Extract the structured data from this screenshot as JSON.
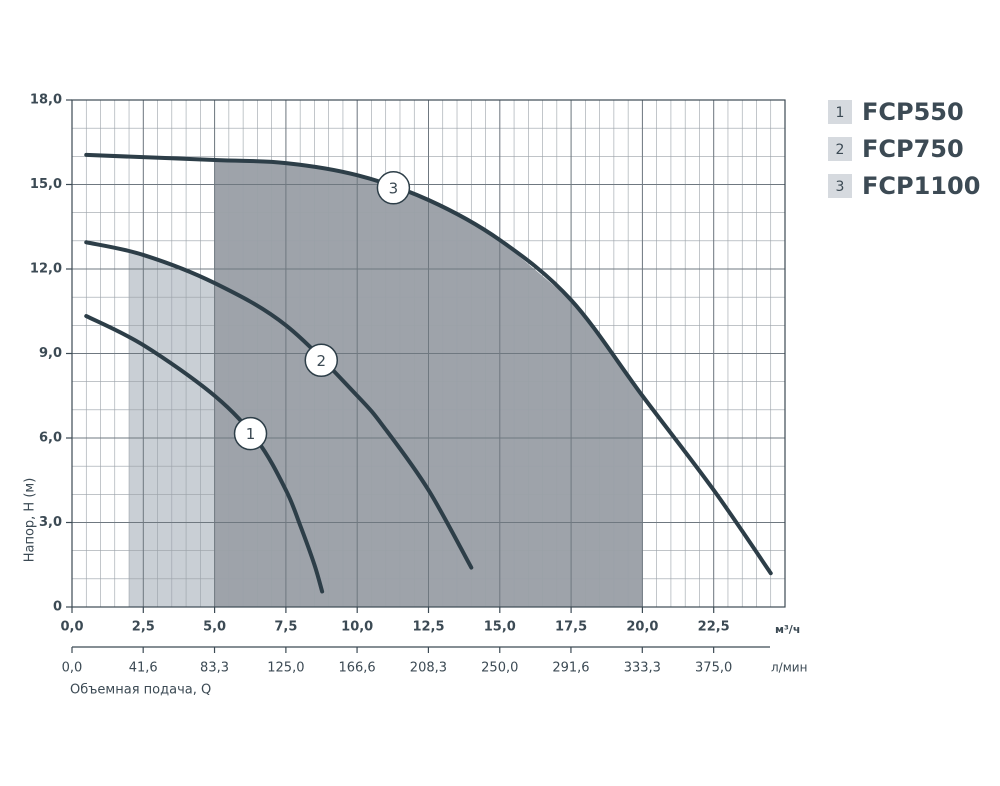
{
  "chart_data": {
    "type": "line",
    "y_label": "Напор, Н (м)",
    "x_label": "Объемная подача, Q",
    "x_unit": "м³/ч",
    "x2_unit": "л/мин",
    "xlim": [
      0,
      25
    ],
    "xticks": [
      {
        "value": 0,
        "label": "0,0"
      },
      {
        "value": 2.5,
        "label": "2,5"
      },
      {
        "value": 5,
        "label": "5,0"
      },
      {
        "value": 7.5,
        "label": "7,5"
      },
      {
        "value": 10,
        "label": "10,0"
      },
      {
        "value": 12.5,
        "label": "12,5"
      },
      {
        "value": 15,
        "label": "15,0"
      },
      {
        "value": 17.5,
        "label": "17,5"
      },
      {
        "value": 20,
        "label": "20,0"
      },
      {
        "value": 22.5,
        "label": "22,5"
      }
    ],
    "x2lim": [
      0,
      416.7
    ],
    "x2ticks": [
      {
        "value": 0,
        "label": "0,0"
      },
      {
        "value": 41.6,
        "label": "41,6"
      },
      {
        "value": 83.3,
        "label": "83,3"
      },
      {
        "value": 125,
        "label": "125,0"
      },
      {
        "value": 166.6,
        "label": "166,6"
      },
      {
        "value": 208.3,
        "label": "208,3"
      },
      {
        "value": 250,
        "label": "250,0"
      },
      {
        "value": 291.6,
        "label": "291,6"
      },
      {
        "value": 333.3,
        "label": "333,3"
      },
      {
        "value": 375,
        "label": "375,0"
      }
    ],
    "ylim": [
      0,
      18
    ],
    "yticks": [
      0,
      {
        "value": 3,
        "label": "3,0"
      },
      {
        "value": 6,
        "label": "6,0"
      },
      {
        "value": 9,
        "label": "9,0"
      },
      {
        "value": 12,
        "label": "12,0"
      },
      {
        "value": 15,
        "label": "15,0"
      },
      {
        "value": 18,
        "label": "18,0"
      }
    ],
    "grid": true,
    "x_minor_divisions": 5,
    "y_minor_divisions": 3,
    "legend": "top-right",
    "series": [
      {
        "name": "FCP550",
        "label": "1",
        "color": "#2d3e48",
        "label_x": 6.26,
        "x": [
          0.5,
          2.5,
          5,
          6.5,
          7.5,
          8,
          8.5,
          8.77
        ],
        "values": [
          10.33,
          9.3,
          7.5,
          5.9,
          4.15,
          2.9,
          1.5,
          0.55
        ]
      },
      {
        "name": "FCP750",
        "label": "2",
        "color": "#2d3e48",
        "label_x": 8.74,
        "range": [
          2,
          11
        ],
        "range_color": "#c9cfd5",
        "x": [
          0.5,
          2.5,
          5,
          7.5,
          10,
          11,
          12.5,
          14
        ],
        "values": [
          12.95,
          12.5,
          11.5,
          10.0,
          7.5,
          6.3,
          4.15,
          1.4
        ]
      },
      {
        "name": "FCP1100",
        "label": "3",
        "color": "#2d3e48",
        "label_x": 11.27,
        "range": [
          5,
          20
        ],
        "range_color": "#9ea3aa",
        "x": [
          0.5,
          5,
          7.5,
          10,
          12.5,
          15,
          17.5,
          20,
          22.5,
          24.5
        ],
        "values": [
          16.05,
          15.87,
          15.76,
          15.33,
          14.45,
          13.03,
          10.9,
          7.5,
          4.15,
          1.2
        ]
      }
    ]
  }
}
